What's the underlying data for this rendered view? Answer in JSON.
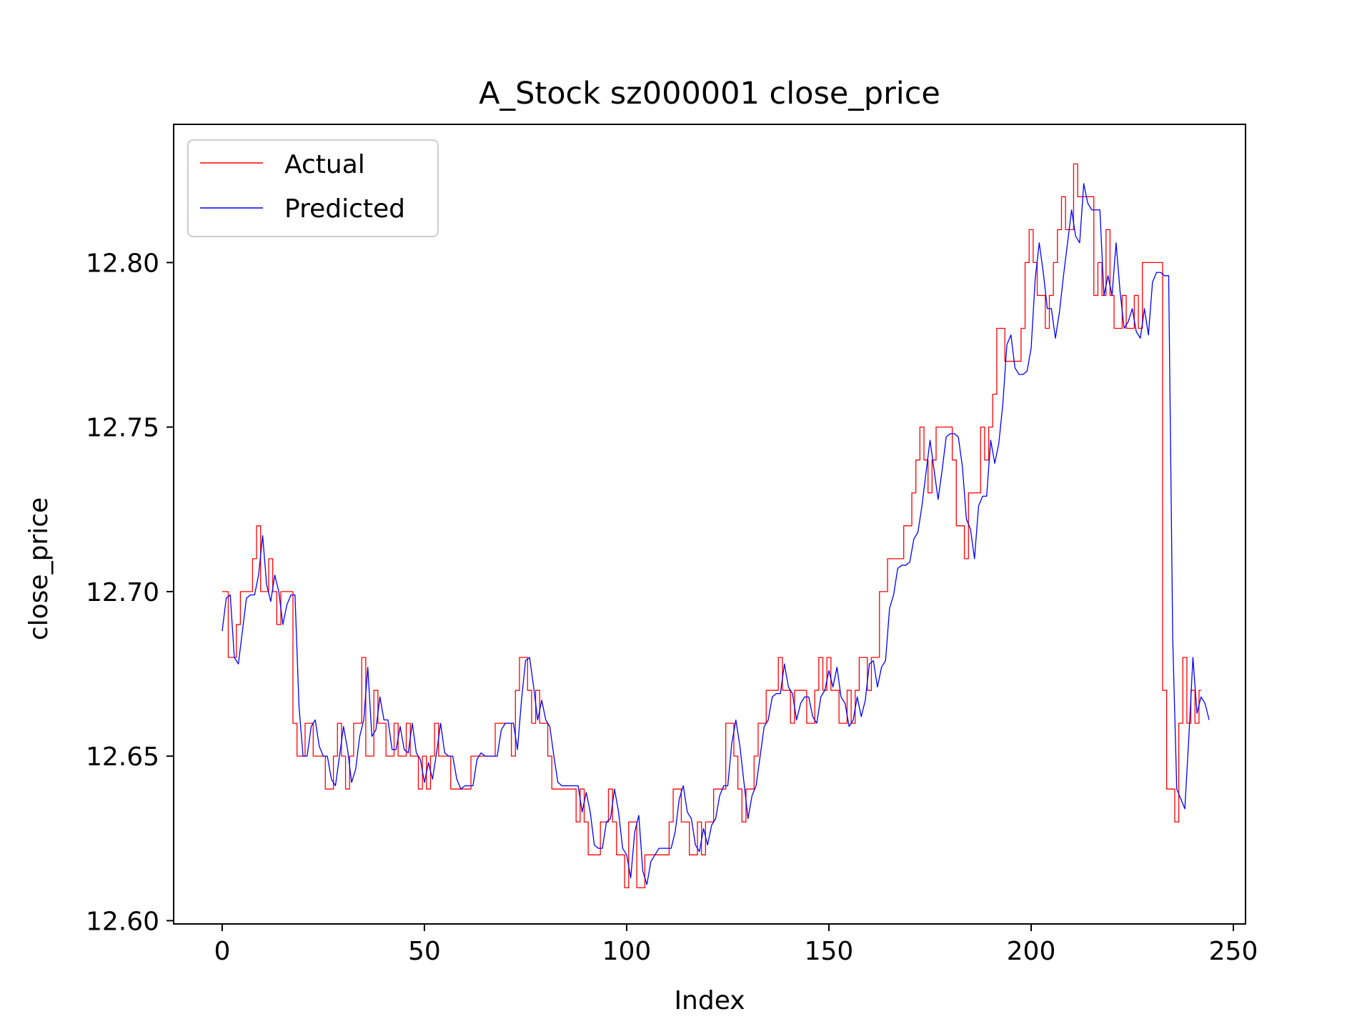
{
  "chart_data": {
    "type": "line",
    "title": "A_Stock sz000001 close_price",
    "xlabel": "Index",
    "ylabel": "close_price",
    "xlim": [
      -12,
      253
    ],
    "ylim": [
      12.599,
      12.842
    ],
    "xticks": [
      0,
      50,
      100,
      150,
      200,
      250
    ],
    "yticks": [
      12.6,
      12.65,
      12.7,
      12.75,
      12.8
    ],
    "xtick_labels": [
      "0",
      "50",
      "100",
      "150",
      "200",
      "250"
    ],
    "ytick_labels": [
      "12.60",
      "12.65",
      "12.70",
      "12.75",
      "12.80"
    ],
    "grid": false,
    "legend_position": "upper-left",
    "series": [
      {
        "name": "Actual",
        "color": "#ff0000",
        "style": "step",
        "x_start": 0,
        "values": [
          12.7,
          12.7,
          12.68,
          12.68,
          12.69,
          12.7,
          12.7,
          12.7,
          12.71,
          12.72,
          12.7,
          12.7,
          12.71,
          12.7,
          12.69,
          12.7,
          12.7,
          12.7,
          12.66,
          12.65,
          12.65,
          12.66,
          12.66,
          12.65,
          12.65,
          12.65,
          12.64,
          12.64,
          12.65,
          12.66,
          12.65,
          12.64,
          12.65,
          12.66,
          12.66,
          12.68,
          12.65,
          12.65,
          12.67,
          12.66,
          12.66,
          12.65,
          12.65,
          12.66,
          12.65,
          12.65,
          12.66,
          12.65,
          12.65,
          12.64,
          12.65,
          12.64,
          12.65,
          12.66,
          12.65,
          12.65,
          12.65,
          12.64,
          12.64,
          12.64,
          12.64,
          12.64,
          12.65,
          12.65,
          12.65,
          12.65,
          12.65,
          12.65,
          12.66,
          12.66,
          12.66,
          12.66,
          12.65,
          12.67,
          12.68,
          12.68,
          12.67,
          12.66,
          12.67,
          12.66,
          12.66,
          12.65,
          12.64,
          12.64,
          12.64,
          12.64,
          12.64,
          12.64,
          12.63,
          12.64,
          12.63,
          12.62,
          12.62,
          12.62,
          12.63,
          12.63,
          12.64,
          12.63,
          12.62,
          12.62,
          12.61,
          12.63,
          12.63,
          12.61,
          12.61,
          12.62,
          12.62,
          12.62,
          12.62,
          12.62,
          12.62,
          12.63,
          12.64,
          12.64,
          12.63,
          12.63,
          12.62,
          12.62,
          12.63,
          12.62,
          12.63,
          12.63,
          12.64,
          12.64,
          12.64,
          12.66,
          12.66,
          12.65,
          12.64,
          12.63,
          12.64,
          12.64,
          12.65,
          12.66,
          12.66,
          12.67,
          12.67,
          12.67,
          12.68,
          12.67,
          12.67,
          12.66,
          12.67,
          12.67,
          12.67,
          12.66,
          12.66,
          12.67,
          12.68,
          12.67,
          12.68,
          12.67,
          12.67,
          12.66,
          12.66,
          12.67,
          12.66,
          12.67,
          12.68,
          12.68,
          12.67,
          12.68,
          12.68,
          12.7,
          12.7,
          12.71,
          12.71,
          12.71,
          12.71,
          12.72,
          12.72,
          12.73,
          12.74,
          12.75,
          12.74,
          12.73,
          12.74,
          12.75,
          12.75,
          12.75,
          12.75,
          12.74,
          12.72,
          12.72,
          12.71,
          12.73,
          12.73,
          12.73,
          12.75,
          12.74,
          12.75,
          12.76,
          12.78,
          12.78,
          12.77,
          12.77,
          12.77,
          12.77,
          12.78,
          12.8,
          12.81,
          12.8,
          12.79,
          12.79,
          12.78,
          12.79,
          12.8,
          12.81,
          12.82,
          12.81,
          12.81,
          12.83,
          12.82,
          12.82,
          12.82,
          12.82,
          12.79,
          12.8,
          12.79,
          12.81,
          12.79,
          12.78,
          12.78,
          12.79,
          12.78,
          12.78,
          12.79,
          12.78,
          12.8,
          12.8,
          12.8,
          12.8,
          12.8,
          12.67,
          12.64,
          12.64,
          12.63,
          12.66,
          12.68,
          12.66,
          12.67,
          12.66,
          12.67
        ]
      },
      {
        "name": "Predicted",
        "color": "#0000ff",
        "style": "line",
        "x_start": 0,
        "values": [
          12.688,
          12.698,
          12.699,
          12.68,
          12.678,
          12.688,
          12.698,
          12.699,
          12.699,
          12.705,
          12.717,
          12.702,
          12.697,
          12.705,
          12.7,
          12.69,
          12.696,
          12.699,
          12.699,
          12.665,
          12.65,
          12.65,
          12.659,
          12.661,
          12.653,
          12.65,
          12.65,
          12.643,
          12.641,
          12.65,
          12.659,
          12.652,
          12.642,
          12.646,
          12.656,
          12.661,
          12.677,
          12.656,
          12.658,
          12.668,
          12.661,
          12.661,
          12.652,
          12.652,
          12.659,
          12.652,
          12.651,
          12.66,
          12.651,
          12.649,
          12.642,
          12.648,
          12.643,
          12.651,
          12.66,
          12.651,
          12.65,
          12.65,
          12.643,
          12.64,
          12.641,
          12.641,
          12.641,
          12.649,
          12.651,
          12.65,
          12.65,
          12.65,
          12.65,
          12.658,
          12.66,
          12.66,
          12.66,
          12.652,
          12.667,
          12.679,
          12.68,
          12.671,
          12.661,
          12.667,
          12.661,
          12.659,
          12.65,
          12.642,
          12.641,
          12.641,
          12.641,
          12.641,
          12.641,
          12.633,
          12.639,
          12.633,
          12.623,
          12.622,
          12.622,
          12.63,
          12.631,
          12.64,
          12.633,
          12.622,
          12.62,
          12.613,
          12.627,
          12.632,
          12.615,
          12.611,
          12.618,
          12.62,
          12.622,
          12.622,
          12.622,
          12.622,
          12.627,
          12.637,
          12.641,
          12.633,
          12.631,
          12.623,
          12.621,
          12.628,
          12.623,
          12.629,
          12.631,
          12.638,
          12.641,
          12.641,
          12.654,
          12.661,
          12.653,
          12.642,
          12.631,
          12.638,
          12.641,
          12.65,
          12.659,
          12.661,
          12.668,
          12.669,
          12.669,
          12.678,
          12.671,
          12.669,
          12.661,
          12.666,
          12.668,
          12.668,
          12.662,
          12.66,
          12.668,
          12.67,
          12.676,
          12.671,
          12.677,
          12.668,
          12.666,
          12.659,
          12.661,
          12.668,
          12.662,
          12.667,
          12.678,
          12.679,
          12.671,
          12.677,
          12.679,
          12.695,
          12.699,
          12.707,
          12.708,
          12.708,
          12.709,
          12.716,
          12.718,
          12.726,
          12.736,
          12.746,
          12.737,
          12.728,
          12.737,
          12.747,
          12.748,
          12.748,
          12.747,
          12.738,
          12.722,
          12.719,
          12.71,
          12.726,
          12.729,
          12.729,
          12.746,
          12.739,
          12.745,
          12.757,
          12.775,
          12.778,
          12.768,
          12.766,
          12.766,
          12.767,
          12.774,
          12.795,
          12.806,
          12.797,
          12.786,
          12.786,
          12.777,
          12.785,
          12.796,
          12.806,
          12.816,
          12.808,
          12.806,
          12.824,
          12.818,
          12.816,
          12.816,
          12.816,
          12.79,
          12.796,
          12.79,
          12.806,
          12.791,
          12.78,
          12.782,
          12.786,
          12.779,
          12.777,
          12.786,
          12.778,
          12.794,
          12.797,
          12.797,
          12.796,
          12.796,
          12.686,
          12.64,
          12.637,
          12.634,
          12.656,
          12.68,
          12.663,
          12.668,
          12.666,
          12.661
        ]
      }
    ]
  }
}
